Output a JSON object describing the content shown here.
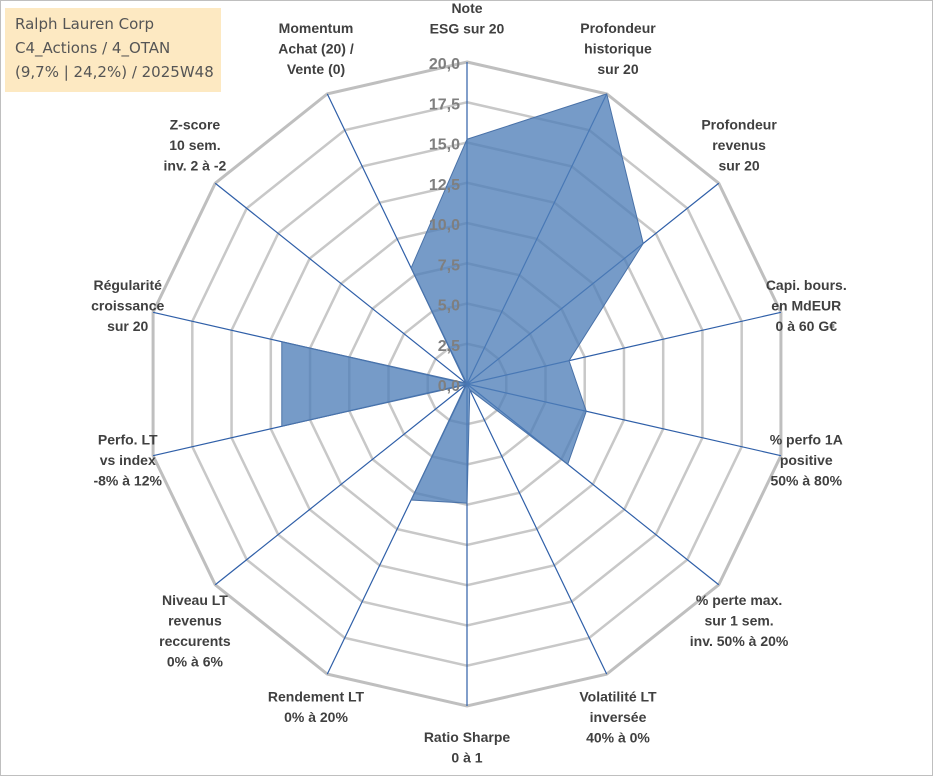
{
  "legend": {
    "company": "Ralph Lauren Corp",
    "category": "C4_Actions / 4_OTAN",
    "stats": "(9,7% | 24,2%) / 2025W48"
  },
  "chart_data": {
    "type": "radar",
    "title": "",
    "rmin": 0,
    "rmax": 20,
    "ticks": [
      "0,0",
      "2,5",
      "5,0",
      "7,5",
      "10,0",
      "12,5",
      "15,0",
      "17,5",
      "20,0"
    ],
    "tick_values": [
      0,
      2.5,
      5,
      7.5,
      10,
      12.5,
      15,
      17.5,
      20
    ],
    "grid": true,
    "categories": [
      [
        "Note",
        "ESG sur 20"
      ],
      [
        "Profondeur",
        "historique",
        "sur 20"
      ],
      [
        "Profondeur",
        "revenus",
        "sur 20"
      ],
      [
        "Capi. bours.",
        "en MdEUR",
        "0 à 60 G€"
      ],
      [
        "% perfo 1A",
        "positive",
        "50% à 80%"
      ],
      [
        "% perte max.",
        "sur 1 sem.",
        "inv. 50% à 20%"
      ],
      [
        "Volatilité LT",
        "inversée",
        "40% à 0%"
      ],
      [
        "Ratio Sharpe",
        "0 à 1"
      ],
      [
        "Rendement LT",
        "0% à 20%"
      ],
      [
        "Niveau LT",
        "revenus",
        "reccurents",
        "0% à 6%"
      ],
      [
        "Perfo. LT",
        "vs index",
        "-8% à 12%"
      ],
      [
        "Régularité",
        "croissance",
        "sur 20"
      ],
      [
        "Z-score",
        "10 sem.",
        "inv. 2 à -2"
      ],
      [
        "Momentum",
        "Achat (20) /",
        "Vente (0)"
      ]
    ],
    "series": [
      {
        "name": "Ralph Lauren Corp",
        "color": "#4f7fb8",
        "values": [
          15.2,
          20.0,
          14.0,
          6.5,
          7.6,
          8.0,
          0.4,
          7.4,
          8.0,
          0.1,
          11.8,
          11.8,
          0.1,
          8.0
        ]
      }
    ]
  }
}
